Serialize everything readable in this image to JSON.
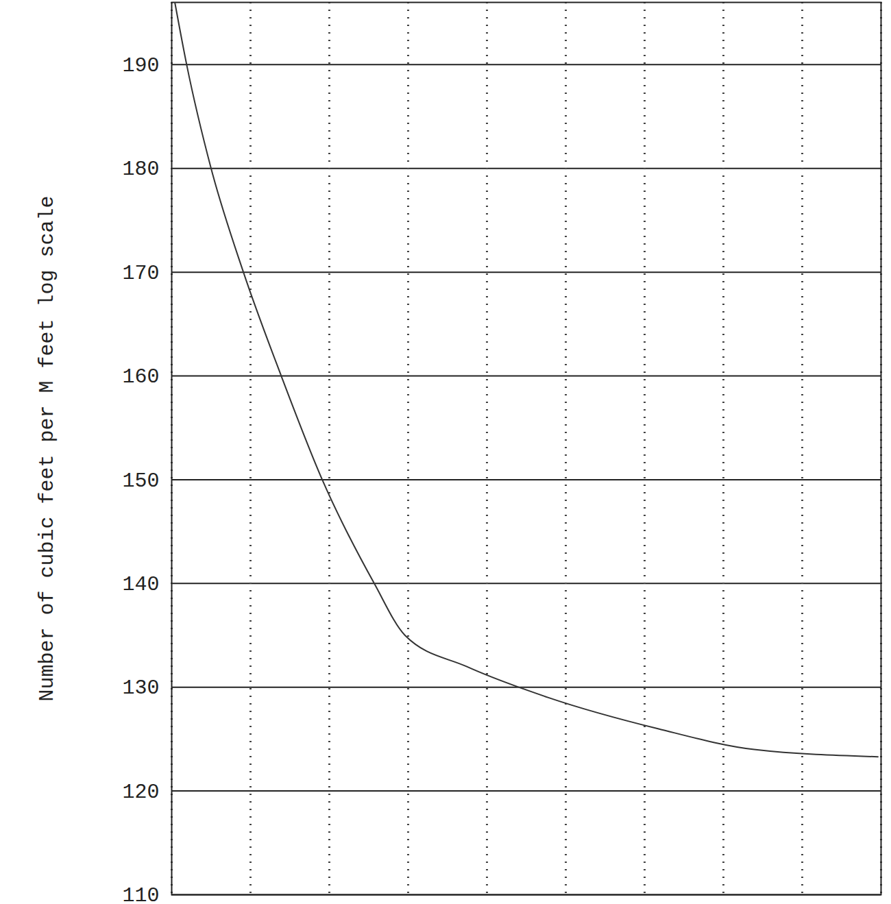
{
  "chart_data": {
    "type": "line",
    "y_label": "Number of cubic feet per M feet log scale",
    "x": [
      0.04,
      0.19,
      0.5,
      0.91,
      1.39,
      1.91,
      2.57,
      2.96,
      3.74,
      4.78,
      6.17,
      7.39,
      8.96
    ],
    "values": [
      196,
      190,
      180,
      170,
      160,
      150,
      140,
      135,
      132,
      129,
      126,
      124,
      123.3
    ],
    "color": "#333333",
    "xlim": [
      0,
      9
    ],
    "xticks": [
      0,
      1,
      2,
      3,
      4,
      5,
      6,
      7,
      8,
      9
    ],
    "ylim": [
      110,
      196
    ],
    "yticks": [
      110,
      120,
      130,
      140,
      150,
      160,
      170,
      180,
      190
    ],
    "grid": true,
    "tick_labels": "y"
  }
}
